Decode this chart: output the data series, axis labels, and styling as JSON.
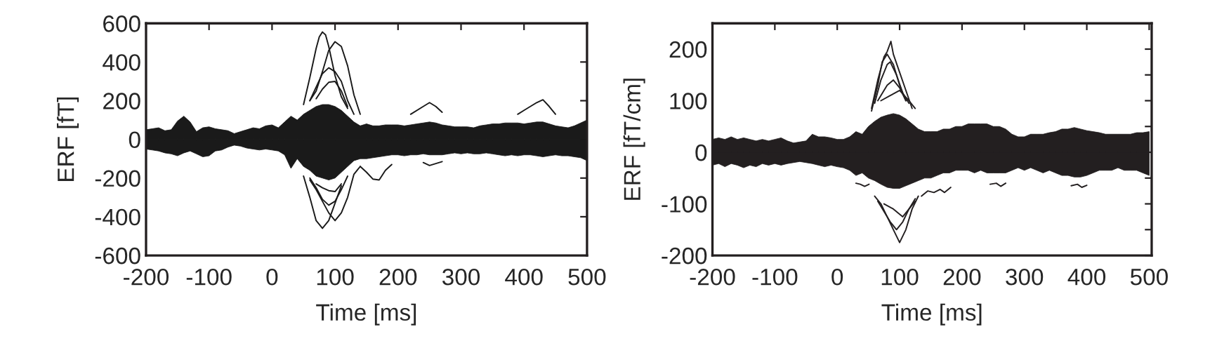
{
  "chart_data": [
    {
      "type": "line",
      "xlabel": "Time [ms]",
      "ylabel": "ERF [fT]",
      "xlim": [
        -200,
        500
      ],
      "ylim": [
        -600,
        600
      ],
      "xticks": [
        -200,
        -100,
        0,
        100,
        200,
        300,
        400,
        500
      ],
      "yticks": [
        -600,
        -400,
        -200,
        0,
        200,
        400,
        600
      ],
      "series": [
        {
          "type": "area",
          "color": "#1a1a1a",
          "x": [
            -200,
            -190,
            -180,
            -170,
            -160,
            -150,
            -140,
            -130,
            -120,
            -110,
            -100,
            -90,
            -80,
            -70,
            -60,
            -50,
            -40,
            -30,
            -20,
            -10,
            0,
            10,
            20,
            30,
            40,
            50,
            60,
            70,
            80,
            90,
            100,
            110,
            120,
            130,
            140,
            150,
            160,
            170,
            180,
            190,
            200,
            210,
            220,
            230,
            240,
            250,
            260,
            270,
            280,
            290,
            300,
            310,
            320,
            330,
            340,
            350,
            360,
            370,
            380,
            390,
            400,
            410,
            420,
            430,
            440,
            450,
            460,
            470,
            480,
            490,
            500
          ],
          "values": [
            50,
            55,
            60,
            45,
            50,
            95,
            120,
            90,
            40,
            60,
            65,
            55,
            50,
            45,
            30,
            40,
            50,
            60,
            55,
            70,
            75,
            60,
            90,
            120,
            100,
            130,
            150,
            170,
            180,
            180,
            170,
            150,
            120,
            90,
            70,
            80,
            70,
            70,
            75,
            75,
            75,
            70,
            75,
            80,
            85,
            90,
            85,
            75,
            70,
            65,
            65,
            65,
            60,
            70,
            75,
            80,
            80,
            85,
            85,
            85,
            80,
            85,
            90,
            90,
            80,
            70,
            65,
            60,
            70,
            85,
            100
          ]
        },
        {
          "type": "area",
          "color": "#1a1a1a",
          "x": [
            -200,
            -190,
            -180,
            -170,
            -160,
            -150,
            -140,
            -130,
            -120,
            -110,
            -100,
            -90,
            -80,
            -70,
            -60,
            -50,
            -40,
            -30,
            -20,
            -10,
            0,
            10,
            20,
            30,
            40,
            50,
            60,
            70,
            80,
            90,
            100,
            110,
            120,
            130,
            140,
            150,
            160,
            170,
            180,
            190,
            200,
            210,
            220,
            230,
            240,
            250,
            260,
            270,
            280,
            290,
            300,
            310,
            320,
            330,
            340,
            350,
            360,
            370,
            380,
            390,
            400,
            410,
            420,
            430,
            440,
            450,
            460,
            470,
            480,
            490,
            500
          ],
          "values": [
            -50,
            -55,
            -60,
            -70,
            -75,
            -85,
            -70,
            -60,
            -75,
            -90,
            -85,
            -60,
            -55,
            -40,
            -30,
            -35,
            -45,
            -50,
            -55,
            -50,
            -55,
            -60,
            -80,
            -150,
            -100,
            -140,
            -160,
            -190,
            -200,
            -210,
            -200,
            -170,
            -140,
            -110,
            -100,
            -100,
            -95,
            -90,
            -85,
            -80,
            -80,
            -85,
            -80,
            -80,
            -75,
            -80,
            -80,
            -80,
            -75,
            -70,
            -75,
            -70,
            -75,
            -75,
            -70,
            -75,
            -80,
            -85,
            -80,
            -85,
            -80,
            -80,
            -85,
            -90,
            -85,
            -80,
            -85,
            -85,
            -90,
            -95,
            -110
          ]
        },
        {
          "color": "#1a1a1a",
          "x": [
            50,
            60,
            70,
            75,
            80,
            85,
            90,
            100,
            110,
            120
          ],
          "values": [
            180,
            320,
            470,
            530,
            555,
            540,
            480,
            330,
            220,
            160
          ]
        },
        {
          "color": "#1a1a1a",
          "x": [
            60,
            70,
            80,
            90,
            100,
            110,
            120,
            130,
            140
          ],
          "values": [
            200,
            250,
            350,
            460,
            505,
            480,
            380,
            230,
            130
          ]
        },
        {
          "color": "#1a1a1a",
          "x": [
            50,
            60,
            70,
            80,
            90,
            100,
            110
          ],
          "values": [
            -190,
            -300,
            -420,
            -460,
            -420,
            -330,
            -240
          ]
        },
        {
          "color": "#1a1a1a",
          "x": [
            60,
            70,
            80,
            90,
            100,
            110,
            120,
            130,
            140
          ],
          "values": [
            -210,
            -260,
            -320,
            -380,
            -420,
            -380,
            -300,
            -180,
            -140
          ]
        },
        {
          "color": "#1a1a1a",
          "x": [
            60,
            70,
            80,
            90,
            100,
            110,
            120,
            130
          ],
          "values": [
            200,
            270,
            340,
            370,
            350,
            300,
            200,
            130
          ]
        },
        {
          "color": "#1a1a1a",
          "x": [
            60,
            70,
            80,
            90,
            100,
            110,
            120
          ],
          "values": [
            -200,
            -250,
            -310,
            -340,
            -320,
            -260,
            -190
          ]
        },
        {
          "color": "#1a1a1a",
          "x": [
            70,
            80,
            90,
            100,
            110,
            120
          ],
          "values": [
            210,
            260,
            295,
            300,
            250,
            170
          ]
        },
        {
          "color": "#1a1a1a",
          "x": [
            70,
            80,
            90,
            100,
            110
          ],
          "values": [
            -230,
            -250,
            -265,
            -270,
            -230
          ]
        },
        {
          "color": "#1a1a1a",
          "x": [
            140,
            150,
            160,
            170,
            180,
            190
          ],
          "values": [
            -140,
            -170,
            -205,
            -210,
            -160,
            -130
          ]
        },
        {
          "color": "#1a1a1a",
          "x": [
            220,
            240,
            250,
            260,
            270
          ],
          "values": [
            130,
            170,
            190,
            170,
            140
          ]
        },
        {
          "color": "#1a1a1a",
          "x": [
            390,
            400,
            410,
            420,
            430,
            440,
            450
          ],
          "values": [
            130,
            150,
            170,
            190,
            205,
            170,
            130
          ]
        },
        {
          "color": "#1a1a1a",
          "x": [
            240,
            250,
            260,
            270
          ],
          "values": [
            -120,
            -135,
            -125,
            -115
          ]
        }
      ]
    },
    {
      "type": "line",
      "xlabel": "Time [ms]",
      "ylabel": "ERF [fT/cm]",
      "xlim": [
        -200,
        504
      ],
      "ylim": [
        -200,
        250
      ],
      "xticks": [
        -200,
        -100,
        0,
        100,
        200,
        300,
        400,
        500
      ],
      "yticks": [
        -200,
        {
          "value": -150,
          "label": null
        },
        -100,
        {
          "value": -50,
          "label": null
        },
        0,
        {
          "value": 50,
          "label": null
        },
        100,
        {
          "value": 150,
          "label": null
        },
        200
      ],
      "series": [
        {
          "type": "area",
          "color": "#231f20",
          "x": [
            -200,
            -190,
            -180,
            -170,
            -160,
            -150,
            -140,
            -130,
            -120,
            -110,
            -100,
            -90,
            -80,
            -70,
            -60,
            -50,
            -40,
            -30,
            -20,
            -10,
            0,
            10,
            20,
            30,
            40,
            50,
            60,
            70,
            80,
            90,
            100,
            110,
            120,
            130,
            140,
            150,
            160,
            170,
            180,
            190,
            200,
            210,
            220,
            230,
            240,
            250,
            260,
            270,
            280,
            290,
            300,
            310,
            320,
            330,
            340,
            350,
            360,
            370,
            380,
            390,
            400,
            410,
            420,
            430,
            440,
            450,
            460,
            470,
            480,
            490,
            500
          ],
          "values": [
            25,
            28,
            25,
            30,
            25,
            28,
            25,
            22,
            25,
            22,
            25,
            28,
            22,
            18,
            20,
            22,
            35,
            30,
            30,
            28,
            25,
            25,
            30,
            40,
            35,
            50,
            60,
            68,
            72,
            75,
            72,
            65,
            55,
            45,
            40,
            40,
            40,
            45,
            45,
            50,
            50,
            55,
            55,
            55,
            55,
            50,
            50,
            45,
            35,
            30,
            30,
            35,
            35,
            35,
            38,
            40,
            45,
            45,
            48,
            45,
            42,
            40,
            38,
            35,
            35,
            35,
            35,
            35,
            38,
            38,
            40
          ]
        },
        {
          "type": "area",
          "color": "#231f20",
          "x": [
            -200,
            -190,
            -180,
            -170,
            -160,
            -150,
            -140,
            -130,
            -120,
            -110,
            -100,
            -90,
            -80,
            -70,
            -60,
            -50,
            -40,
            -30,
            -20,
            -10,
            0,
            10,
            20,
            30,
            40,
            50,
            60,
            70,
            80,
            90,
            100,
            110,
            120,
            130,
            140,
            150,
            160,
            170,
            180,
            190,
            200,
            210,
            220,
            230,
            240,
            250,
            260,
            270,
            280,
            290,
            300,
            310,
            320,
            330,
            340,
            350,
            360,
            370,
            380,
            390,
            400,
            410,
            420,
            430,
            440,
            450,
            460,
            470,
            480,
            490,
            500
          ],
          "values": [
            -25,
            -22,
            -28,
            -22,
            -25,
            -30,
            -25,
            -28,
            -22,
            -25,
            -22,
            -25,
            -22,
            -20,
            -18,
            -20,
            -22,
            -25,
            -28,
            -25,
            -28,
            -30,
            -35,
            -45,
            -40,
            -50,
            -55,
            -62,
            -68,
            -70,
            -70,
            -65,
            -60,
            -55,
            -50,
            -50,
            -45,
            -40,
            -40,
            -35,
            -35,
            -35,
            -40,
            -35,
            -40,
            -40,
            -40,
            -40,
            -35,
            -30,
            -35,
            -30,
            -35,
            -40,
            -35,
            -40,
            -45,
            -45,
            -48,
            -48,
            -45,
            -40,
            -35,
            -35,
            -35,
            -30,
            -35,
            -35,
            -35,
            -40,
            -45
          ]
        },
        {
          "color": "#231f20",
          "x": [
            55,
            65,
            75,
            80,
            86,
            90,
            100,
            110,
            120
          ],
          "values": [
            85,
            140,
            185,
            195,
            215,
            190,
            155,
            120,
            85
          ]
        },
        {
          "color": "#231f20",
          "x": [
            55,
            65,
            72,
            80,
            90,
            100,
            110
          ],
          "values": [
            80,
            130,
            175,
            190,
            170,
            130,
            100
          ]
        },
        {
          "color": "#231f20",
          "x": [
            60,
            70,
            80,
            85,
            95,
            105,
            115
          ],
          "values": [
            95,
            140,
            170,
            175,
            150,
            115,
            95
          ]
        },
        {
          "color": "#231f20",
          "x": [
            65,
            80,
            90,
            100,
            110
          ],
          "values": [
            100,
            130,
            140,
            125,
            100
          ]
        },
        {
          "color": "#231f20",
          "x": [
            70,
            85,
            100,
            115,
            125
          ],
          "values": [
            100,
            110,
            120,
            100,
            85
          ]
        },
        {
          "color": "#231f20",
          "x": [
            60,
            70,
            80,
            90,
            100,
            110,
            120,
            130
          ],
          "values": [
            -85,
            -100,
            -125,
            -150,
            -175,
            -150,
            -110,
            -85
          ]
        },
        {
          "color": "#231f20",
          "x": [
            65,
            75,
            85,
            95,
            105,
            115,
            125
          ],
          "values": [
            -95,
            -115,
            -135,
            -150,
            -135,
            -110,
            -90
          ]
        },
        {
          "color": "#231f20",
          "x": [
            75,
            90,
            105,
            115,
            125
          ],
          "values": [
            -100,
            -110,
            -125,
            -110,
            -95
          ]
        },
        {
          "color": "#231f20",
          "x": [
            135,
            145,
            155,
            165,
            172,
            182
          ],
          "values": [
            -85,
            -75,
            -78,
            -72,
            -78,
            -68
          ]
        },
        {
          "color": "#231f20",
          "x": [
            245,
            255,
            262,
            270
          ],
          "values": [
            -62,
            -60,
            -66,
            -60
          ]
        },
        {
          "color": "#231f20",
          "x": [
            375,
            385,
            392,
            400
          ],
          "values": [
            -65,
            -62,
            -68,
            -64
          ]
        },
        {
          "color": "#231f20",
          "x": [
            30,
            37,
            44,
            51
          ],
          "values": [
            -60,
            -62,
            -66,
            -62
          ]
        }
      ]
    }
  ]
}
